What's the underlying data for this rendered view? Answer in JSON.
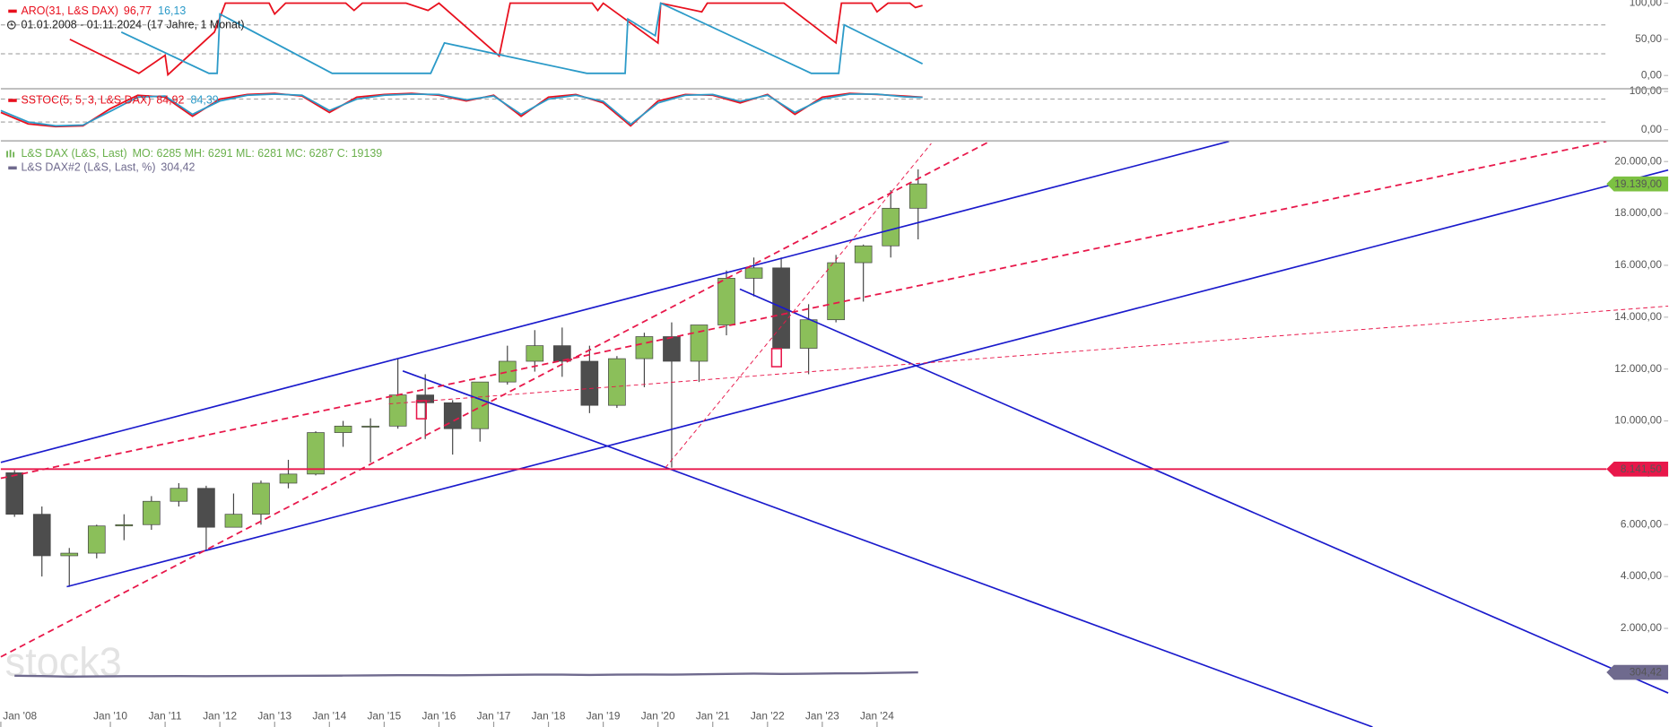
{
  "chart_data": [
    {
      "type": "line",
      "name": "ARO(31, L&S DAX)",
      "range": "01.01.2008 - 01.11.2024",
      "range_note": "(17 Jahre, 1 Monat)",
      "ylim": [
        -17.6,
        104.4
      ],
      "yticks": [
        {
          "value": 0,
          "label": "0,00"
        },
        {
          "value": 50,
          "label": "50,00"
        },
        {
          "value": 100,
          "label": "100,00"
        }
      ],
      "guides": [
        30,
        70
      ],
      "series": [
        {
          "color": "#e8101e",
          "legend_value": {
            "value": 96.77,
            "label": "96,77"
          },
          "x": [
            2009.26,
            2010.52,
            2011.0,
            2011.05,
            2011.9,
            2012.1,
            2012.9,
            2013.0,
            2013.2,
            2014.3,
            2014.45,
            2014.6,
            2015.4,
            2015.8,
            2016.0,
            2017.1,
            2017.3,
            2018.8,
            2018.9,
            2019.0,
            2020.0,
            2020.05,
            2020.8,
            2020.9,
            2022.3,
            2023.25,
            2023.35,
            2023.9,
            2024.0,
            2024.2,
            2024.6,
            2024.7,
            2024.83
          ],
          "values": [
            50,
            3,
            28,
            1,
            60,
            100,
            100,
            85,
            100,
            100,
            90,
            100,
            100,
            90,
            100,
            27,
            100,
            100,
            90,
            100,
            45,
            100,
            88,
            100,
            100,
            45,
            100,
            100,
            88,
            100,
            100,
            94,
            96.77
          ]
        },
        {
          "color": "#2b9ac8",
          "legend_value": {
            "value": 16.13,
            "label": "16,13"
          },
          "x": [
            2010.2,
            2011.8,
            2011.95,
            2012.0,
            2014.05,
            2015.85,
            2016.1,
            2018.7,
            2019.4,
            2019.45,
            2019.95,
            2020.05,
            2022.8,
            2023.3,
            2023.4,
            2024.83
          ],
          "values": [
            60,
            3,
            3,
            85,
            3,
            3,
            45,
            3,
            3,
            78,
            55,
            100,
            3,
            3,
            70,
            16.13
          ]
        }
      ]
    },
    {
      "type": "line",
      "name": "SSTOC(5, 5, 3, L&S DAX)",
      "ylim": [
        -27.8,
        105.6
      ],
      "yticks": [
        {
          "value": 0,
          "label": "0,00"
        },
        {
          "value": 100,
          "label": "100,00"
        }
      ],
      "guides": [
        20,
        80
      ],
      "series": [
        {
          "color": "#e8101e",
          "legend_value": {
            "value": 84.92,
            "label": "84,92"
          },
          "x": [
            2008.0,
            2008.5,
            2009.0,
            2009.5,
            2010.0,
            2010.5,
            2011.0,
            2011.5,
            2012.0,
            2012.5,
            2013.0,
            2013.5,
            2014.0,
            2014.5,
            2015.0,
            2015.5,
            2016.0,
            2016.5,
            2017.0,
            2017.5,
            2018.0,
            2018.5,
            2019.0,
            2019.5,
            2020.0,
            2020.5,
            2021.0,
            2021.5,
            2022.0,
            2022.5,
            2023.0,
            2023.5,
            2024.0,
            2024.5,
            2024.83
          ],
          "values": [
            45,
            15,
            8,
            10,
            55,
            90,
            85,
            35,
            80,
            92,
            95,
            88,
            45,
            85,
            92,
            95,
            90,
            75,
            90,
            35,
            85,
            92,
            70,
            10,
            75,
            92,
            90,
            70,
            92,
            40,
            85,
            95,
            92,
            88,
            84.92
          ]
        },
        {
          "color": "#2b9ac8",
          "legend_value": {
            "value": 84.39,
            "label": "84,39"
          },
          "x": [
            2008.0,
            2008.5,
            2009.0,
            2009.5,
            2010.0,
            2010.5,
            2011.0,
            2011.5,
            2012.0,
            2012.5,
            2013.0,
            2013.5,
            2014.0,
            2014.5,
            2015.0,
            2015.5,
            2016.0,
            2016.5,
            2017.0,
            2017.5,
            2018.0,
            2018.5,
            2019.0,
            2019.5,
            2020.0,
            2020.5,
            2021.0,
            2021.5,
            2022.0,
            2022.5,
            2023.0,
            2023.5,
            2024.0,
            2024.5,
            2024.83
          ],
          "values": [
            50,
            20,
            10,
            12,
            48,
            85,
            88,
            40,
            75,
            90,
            93,
            90,
            50,
            80,
            90,
            93,
            92,
            78,
            88,
            40,
            80,
            90,
            74,
            14,
            70,
            90,
            92,
            74,
            90,
            45,
            80,
            93,
            93,
            86,
            84.39
          ]
        }
      ]
    },
    {
      "type": "candlestick",
      "name": "L&S DAX (L&S, Last)",
      "stats": "MO: 6285 MH: 6291 ML: 6281 MC: 6287 C: 19139",
      "color": "#6ab04c",
      "color_up": "#8bbf5a",
      "color_down": "#4d4d4d",
      "watermark": "stock3",
      "x": [
        2008.25,
        2008.75,
        2009.25,
        2009.75,
        2010.25,
        2010.75,
        2011.25,
        2011.75,
        2012.25,
        2012.75,
        2013.25,
        2013.75,
        2014.25,
        2014.75,
        2015.25,
        2015.75,
        2016.25,
        2016.75,
        2017.25,
        2017.75,
        2018.25,
        2018.75,
        2019.25,
        2019.75,
        2020.25,
        2020.75,
        2021.25,
        2021.75,
        2022.25,
        2022.75,
        2023.25,
        2023.75,
        2024.25,
        2024.75
      ],
      "open": [
        8000,
        6400,
        4800,
        4900,
        5950,
        6000,
        6900,
        7400,
        5900,
        6400,
        7600,
        7950,
        9550,
        9800,
        9800,
        11000,
        10700,
        9700,
        11500,
        12300,
        12900,
        12300,
        10600,
        12400,
        13250,
        12300,
        13700,
        15500,
        15900,
        12800,
        13900,
        16100,
        16750,
        18200
      ],
      "high": [
        8100,
        6700,
        5100,
        6000,
        6400,
        7100,
        7600,
        7500,
        7200,
        7700,
        8500,
        9600,
        10000,
        10100,
        12400,
        11800,
        10800,
        11500,
        12900,
        13500,
        13600,
        12900,
        12500,
        13400,
        13800,
        13500,
        15800,
        16300,
        16300,
        14500,
        16400,
        16800,
        18900,
        19700
      ],
      "low": [
        6300,
        4000,
        3600,
        4700,
        5400,
        5800,
        6700,
        5000,
        5900,
        6000,
        7400,
        7900,
        9000,
        8400,
        9700,
        9300,
        8700,
        9200,
        11400,
        11900,
        11700,
        10300,
        10500,
        11300,
        8200,
        11500,
        13300,
        14800,
        12400,
        11800,
        13800,
        14600,
        16300,
        17000
      ],
      "close": [
        6400,
        4800,
        4900,
        5950,
        6000,
        6900,
        7400,
        5900,
        6400,
        7600,
        7950,
        9550,
        9800,
        9800,
        11000,
        10700,
        9700,
        11500,
        12300,
        12900,
        12300,
        10600,
        12400,
        13250,
        12300,
        13700,
        15500,
        15900,
        12800,
        13900,
        16100,
        16750,
        18200,
        19139
      ],
      "last": {
        "value": 19139,
        "label": "19.139,00",
        "color": "#7cc142"
      },
      "overlay": {
        "type": "line",
        "name": "L&S DAX#2 (L&S, Last, %)",
        "color": "#6f6a8e",
        "x": [
          2008.25,
          2008.75,
          2009.25,
          2009.75,
          2010.25,
          2010.75,
          2011.25,
          2011.75,
          2012.25,
          2012.75,
          2013.25,
          2013.75,
          2014.25,
          2014.75,
          2015.25,
          2015.75,
          2016.25,
          2016.75,
          2017.25,
          2017.75,
          2018.25,
          2018.75,
          2019.25,
          2019.75,
          2020.25,
          2020.75,
          2021.25,
          2021.75,
          2022.25,
          2022.75,
          2023.25,
          2023.75,
          2024.25,
          2024.75
        ],
        "values": [
          175,
          160,
          140,
          150,
          155,
          158,
          160,
          158,
          160,
          165,
          170,
          175,
          180,
          185,
          195,
          195,
          190,
          200,
          210,
          215,
          215,
          205,
          215,
          220,
          215,
          230,
          245,
          255,
          245,
          250,
          265,
          270,
          285,
          304.42
        ],
        "last": {
          "value": 304.42,
          "label": "304,42"
        }
      },
      "levels": [
        {
          "value": 8141.5,
          "label": "8.141,50",
          "color": "#e8174a"
        }
      ],
      "xlim": [
        2008,
        2037.32
      ],
      "xticks": [
        {
          "value": 2008,
          "label": "Jan '08"
        },
        {
          "value": 2010,
          "label": "Jan '10"
        },
        {
          "value": 2011,
          "label": "Jan '11"
        },
        {
          "value": 2012,
          "label": "Jan '12"
        },
        {
          "value": 2013,
          "label": "Jan '13"
        },
        {
          "value": 2014,
          "label": "Jan '14"
        },
        {
          "value": 2015,
          "label": "Jan '15"
        },
        {
          "value": 2016,
          "label": "Jan '16"
        },
        {
          "value": 2017,
          "label": "Jan '17"
        },
        {
          "value": 2018,
          "label": "Jan '18"
        },
        {
          "value": 2019,
          "label": "Jan '19"
        },
        {
          "value": 2020,
          "label": "Jan '20"
        },
        {
          "value": 2021,
          "label": "Jan '21"
        },
        {
          "value": 2022,
          "label": "Jan '22"
        },
        {
          "value": 2023,
          "label": "Jan '23"
        },
        {
          "value": 2024,
          "label": "Jan '24"
        }
      ],
      "ylim": [
        -1803,
        20779
      ],
      "yticks": [
        {
          "value": 2000,
          "label": "2.000,00"
        },
        {
          "value": 4000,
          "label": "4.000,00"
        },
        {
          "value": 6000,
          "label": "6.000,00"
        },
        {
          "value": 8000,
          "label": "8.000,00"
        },
        {
          "value": 10000,
          "label": "10.000,00"
        },
        {
          "value": 12000,
          "label": "12.000,00"
        },
        {
          "value": 14000,
          "label": "14.000,00"
        },
        {
          "value": 16000,
          "label": "16.000,00"
        },
        {
          "value": 18000,
          "label": "18.000,00"
        },
        {
          "value": 20000,
          "label": "20.000,00"
        }
      ]
    }
  ]
}
